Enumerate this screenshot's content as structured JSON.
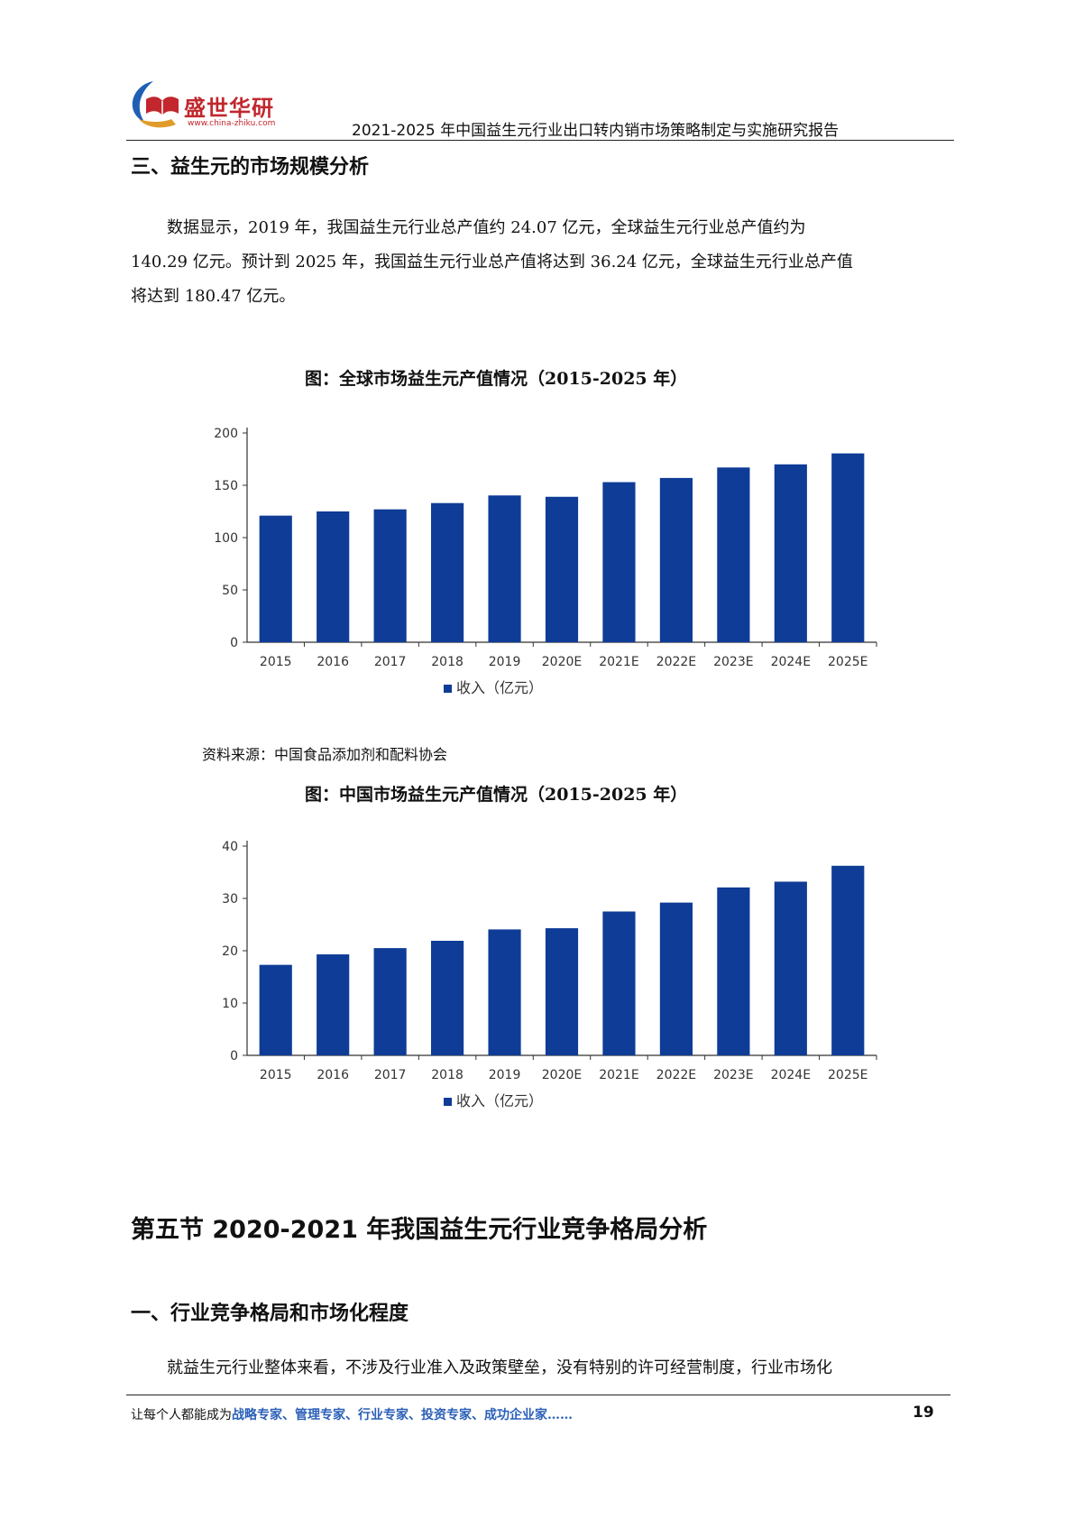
{
  "header": {
    "brand_name": "盛世华研",
    "brand_url": "www.china-zhiku.com",
    "report_title": "2021-2025 年中国益生元行业出口转内销市场策略制定与实施研究报告"
  },
  "section_three": {
    "heading": "三、益生元的市场规模分析",
    "paragraph_lines": [
      "数据显示，2019 年，我国益生元行业总产值约 24.07 亿元，全球益生元行业总产值约为",
      "140.29 亿元。预计到 2025 年，我国益生元行业总产值将达到 36.24 亿元，全球益生元行业总产值",
      "将达到 180.47 亿元。"
    ]
  },
  "source_note": "资料来源：中国食品添加剂和配料协会",
  "chart_data": [
    {
      "type": "bar",
      "title": "图：全球市场益生元产值情况（2015-2025 年）",
      "categories": [
        "2015",
        "2016",
        "2017",
        "2018",
        "2019",
        "2020E",
        "2021E",
        "2022E",
        "2023E",
        "2024E",
        "2025E"
      ],
      "series": [
        {
          "name": "收入（亿元）",
          "values": [
            121,
            125,
            127,
            133,
            140.29,
            139,
            153,
            157,
            167,
            170,
            180.47
          ]
        }
      ],
      "yticks": [
        "0",
        "50",
        "100",
        "150",
        "200"
      ],
      "ylim": [
        0,
        200
      ],
      "grid": false,
      "legend": "bottom",
      "color": "#0e3c96"
    },
    {
      "type": "bar",
      "title": "图：中国市场益生元产值情况（2015-2025 年）",
      "categories": [
        "2015",
        "2016",
        "2017",
        "2018",
        "2019",
        "2020E",
        "2021E",
        "2022E",
        "2023E",
        "2024E",
        "2025E"
      ],
      "series": [
        {
          "name": "收入（亿元）",
          "values": [
            17.3,
            19.3,
            20.5,
            21.9,
            24.07,
            24.3,
            27.5,
            29.2,
            32.1,
            33.2,
            36.24
          ]
        }
      ],
      "yticks": [
        "0",
        "10",
        "20",
        "30",
        "40"
      ],
      "ylim": [
        0,
        40
      ],
      "grid": false,
      "legend": "bottom",
      "color": "#0e3c96"
    }
  ],
  "section_five": {
    "heading": "第五节 2020-2021 年我国益生元行业竞争格局分析"
  },
  "section_one": {
    "heading": "一、行业竞争格局和市场化程度",
    "paragraph": "就益生元行业整体来看，不涉及行业准入及政策壁垒，没有特别的许可经营制度，行业市场化"
  },
  "footer": {
    "slogan_prefix": "让每个人都能成为",
    "slogan_highlight": "战略专家、管理专家、行业专家、投资专家、成功企业家……",
    "page_number": "19"
  }
}
